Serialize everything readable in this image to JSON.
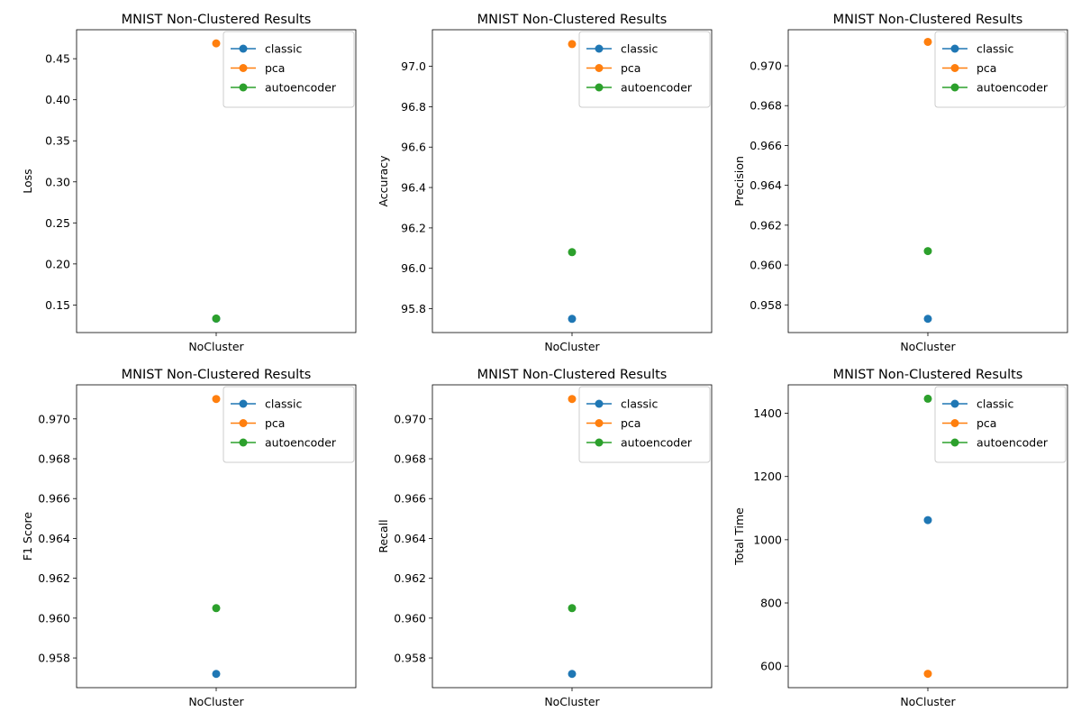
{
  "colors": {
    "classic": "#1f77b4",
    "pca": "#ff7f0e",
    "autoencoder": "#2ca02c"
  },
  "chart_data": [
    {
      "type": "line",
      "title": "MNIST Non-Clustered Results",
      "xlabel": "",
      "ylabel": "Loss",
      "categories": [
        "NoCluster"
      ],
      "ylim": [
        0.1164,
        0.4853
      ],
      "yticks": [
        0.15,
        0.2,
        0.25,
        0.3,
        0.35,
        0.4,
        0.45
      ],
      "ytick_labels": [
        "0.15",
        "0.20",
        "0.25",
        "0.30",
        "0.35",
        "0.40",
        "0.45"
      ],
      "legend": "top-right",
      "grid": false,
      "series": [
        {
          "name": "classic",
          "values": [
            0.1333
          ]
        },
        {
          "name": "pca",
          "values": [
            0.4687
          ]
        },
        {
          "name": "autoencoder",
          "values": [
            0.1335
          ]
        }
      ]
    },
    {
      "type": "line",
      "title": "MNIST Non-Clustered Results",
      "xlabel": "",
      "ylabel": "Accuracy",
      "categories": [
        "NoCluster"
      ],
      "ylim": [
        95.682,
        97.181
      ],
      "yticks": [
        95.8,
        96.0,
        96.2,
        96.4,
        96.6,
        96.8,
        97.0
      ],
      "ytick_labels": [
        "95.8",
        "96.0",
        "96.2",
        "96.4",
        "96.6",
        "96.8",
        "97.0"
      ],
      "legend": "top-right",
      "grid": false,
      "series": [
        {
          "name": "classic",
          "values": [
            95.75
          ]
        },
        {
          "name": "pca",
          "values": [
            97.11
          ]
        },
        {
          "name": "autoencoder",
          "values": [
            96.08
          ]
        }
      ]
    },
    {
      "type": "line",
      "title": "MNIST Non-Clustered Results",
      "xlabel": "",
      "ylabel": "Precision",
      "categories": [
        "NoCluster"
      ],
      "ylim": [
        0.95661,
        0.97181
      ],
      "yticks": [
        0.958,
        0.96,
        0.962,
        0.964,
        0.966,
        0.968,
        0.97
      ],
      "ytick_labels": [
        "0.958",
        "0.960",
        "0.962",
        "0.964",
        "0.966",
        "0.968",
        "0.970"
      ],
      "legend": "top-right",
      "grid": false,
      "series": [
        {
          "name": "classic",
          "values": [
            0.9573
          ]
        },
        {
          "name": "pca",
          "values": [
            0.9712
          ]
        },
        {
          "name": "autoencoder",
          "values": [
            0.9607
          ]
        }
      ]
    },
    {
      "type": "line",
      "title": "MNIST Non-Clustered Results",
      "xlabel": "",
      "ylabel": "F1 Score",
      "categories": [
        "NoCluster"
      ],
      "ylim": [
        0.95651,
        0.97171
      ],
      "yticks": [
        0.958,
        0.96,
        0.962,
        0.964,
        0.966,
        0.968,
        0.97
      ],
      "ytick_labels": [
        "0.958",
        "0.960",
        "0.962",
        "0.964",
        "0.966",
        "0.968",
        "0.970"
      ],
      "legend": "top-right",
      "grid": false,
      "series": [
        {
          "name": "classic",
          "values": [
            0.9572
          ]
        },
        {
          "name": "pca",
          "values": [
            0.971
          ]
        },
        {
          "name": "autoencoder",
          "values": [
            0.9605
          ]
        }
      ]
    },
    {
      "type": "line",
      "title": "MNIST Non-Clustered Results",
      "xlabel": "",
      "ylabel": "Recall",
      "categories": [
        "NoCluster"
      ],
      "ylim": [
        0.95651,
        0.97171
      ],
      "yticks": [
        0.958,
        0.96,
        0.962,
        0.964,
        0.966,
        0.968,
        0.97
      ],
      "ytick_labels": [
        "0.958",
        "0.960",
        "0.962",
        "0.964",
        "0.966",
        "0.968",
        "0.970"
      ],
      "legend": "top-right",
      "grid": false,
      "series": [
        {
          "name": "classic",
          "values": [
            0.9572
          ]
        },
        {
          "name": "pca",
          "values": [
            0.971
          ]
        },
        {
          "name": "autoencoder",
          "values": [
            0.9605
          ]
        }
      ]
    },
    {
      "type": "line",
      "title": "MNIST Non-Clustered Results",
      "xlabel": "",
      "ylabel": "Total Time",
      "categories": [
        "NoCluster"
      ],
      "ylim": [
        532,
        1490
      ],
      "yticks": [
        600,
        800,
        1000,
        1200,
        1400
      ],
      "ytick_labels": [
        "600",
        "800",
        "1000",
        "1200",
        "1400"
      ],
      "legend": "top-right",
      "grid": false,
      "series": [
        {
          "name": "classic",
          "values": [
            1062
          ]
        },
        {
          "name": "pca",
          "values": [
            576
          ]
        },
        {
          "name": "autoencoder",
          "values": [
            1446
          ]
        }
      ]
    }
  ]
}
